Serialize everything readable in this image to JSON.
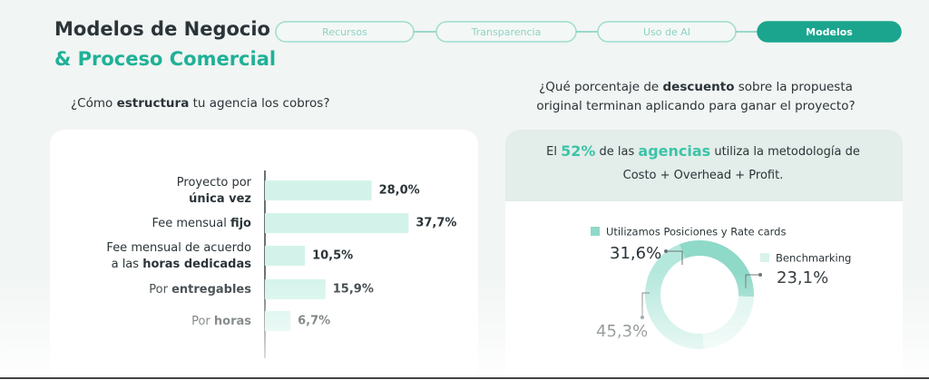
{
  "header": {
    "title_line1": "Modelos de Negocio",
    "title_line2": "& Proceso Comercial"
  },
  "steps": [
    "Recursos",
    "Transparencia",
    "Uso de AI",
    "Modelos"
  ],
  "active_step": 3,
  "chart_data": [
    {
      "type": "bar",
      "orientation": "horizontal",
      "title": [
        {
          "text": "¿Cómo "
        },
        {
          "text": "estructura",
          "bold": true
        },
        {
          "text": " tu agencia los cobros?"
        }
      ],
      "categories": [
        [
          [
            {
              "text": "Proyecto por"
            }
          ],
          [
            {
              "text": "única vez",
              "bold": true
            }
          ]
        ],
        [
          [
            {
              "text": "Fee mensual "
            },
            {
              "text": "fijo",
              "bold": true
            }
          ]
        ],
        [
          [
            {
              "text": "Fee mensual de acuerdo"
            }
          ],
          [
            {
              "text": "a las "
            },
            {
              "text": "horas dedicadas",
              "bold": true
            }
          ]
        ],
        [
          [
            {
              "text": "Por "
            },
            {
              "text": "entregables",
              "bold": true
            }
          ]
        ],
        [
          [
            {
              "text": "Por "
            },
            {
              "text": "horas",
              "bold": true
            }
          ]
        ]
      ],
      "values": [
        28.0,
        37.7,
        10.5,
        15.9,
        6.7
      ],
      "value_labels": [
        "28,0%",
        "37,7%",
        "10,5%",
        "15,9%",
        "6,7%"
      ],
      "color": "#d3f3ea"
    },
    {
      "type": "pie",
      "donut": true,
      "title": [
        [
          {
            "text": "¿Qué porcentaje de "
          },
          {
            "text": "descuento",
            "bold": true
          },
          {
            "text": " sobre la propuesta"
          }
        ],
        [
          {
            "text": "original terminan aplicando para ganar el proyecto?"
          }
        ]
      ],
      "callout": [
        [
          {
            "text": "El "
          },
          {
            "text": "52%",
            "accent": true
          },
          {
            "text": " de las "
          },
          {
            "text": "agencias",
            "accent": true
          },
          {
            "text": " utiliza la metodología de"
          }
        ],
        [
          {
            "text": "Costo + Overhead + Profit."
          }
        ]
      ],
      "categories": [
        "Utilizamos Posiciones y Rate cards",
        "Benchmarking",
        null
      ],
      "values": [
        31.6,
        23.1,
        45.3
      ],
      "value_labels": [
        "31,6%",
        "23,1%",
        "45,3%"
      ],
      "colors": [
        "#8fd9c8",
        "#d9f3ec",
        "#b5e8dc"
      ]
    }
  ]
}
